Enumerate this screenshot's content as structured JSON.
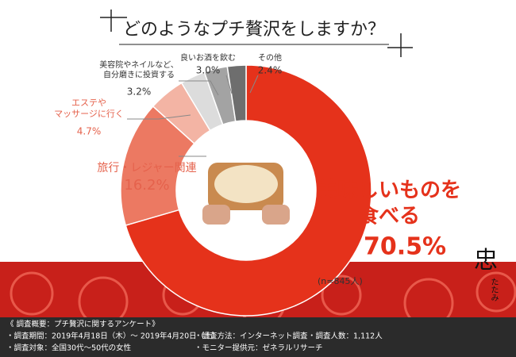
{
  "chart_data": {
    "type": "donut",
    "title": "どのようなプチ贅沢をしますか？",
    "categories": [
      "美味しいものを\n食べる",
      "旅行・レジャー関連",
      "エステや\nマッサージに行く",
      "美容院やネイルなど、\n自分磨きに投資する",
      "良いお酒を飲む",
      "その他"
    ],
    "values": [
      70.5,
      16.2,
      4.7,
      3.2,
      3.0,
      2.4
    ],
    "value_labels": [
      "70.5%",
      "16.2%",
      "4.7%",
      "3.2%",
      "3.0%",
      "2.4%"
    ],
    "colors": [
      "#e5321b",
      "#ec7962",
      "#f3b4a4",
      "#dcdcdc",
      "#a3a3a3",
      "#6e6e6e"
    ],
    "note": "(n=845人)"
  },
  "footer": {
    "heading": "《 調査概要：プチ贅沢に関するアンケート》",
    "items": [
      "・調査期間：2019年4月18日（木）～ 2019年4月20日（土）",
      "・調査方法：インターネット調査",
      "・調査人数：1,112人",
      "・調査対象：全国30代〜50代の女性",
      "・モニター提供元：ゼネラルリサーチ"
    ]
  },
  "logo": {
    "kanji": "忠",
    "kana": "たたみ"
  }
}
